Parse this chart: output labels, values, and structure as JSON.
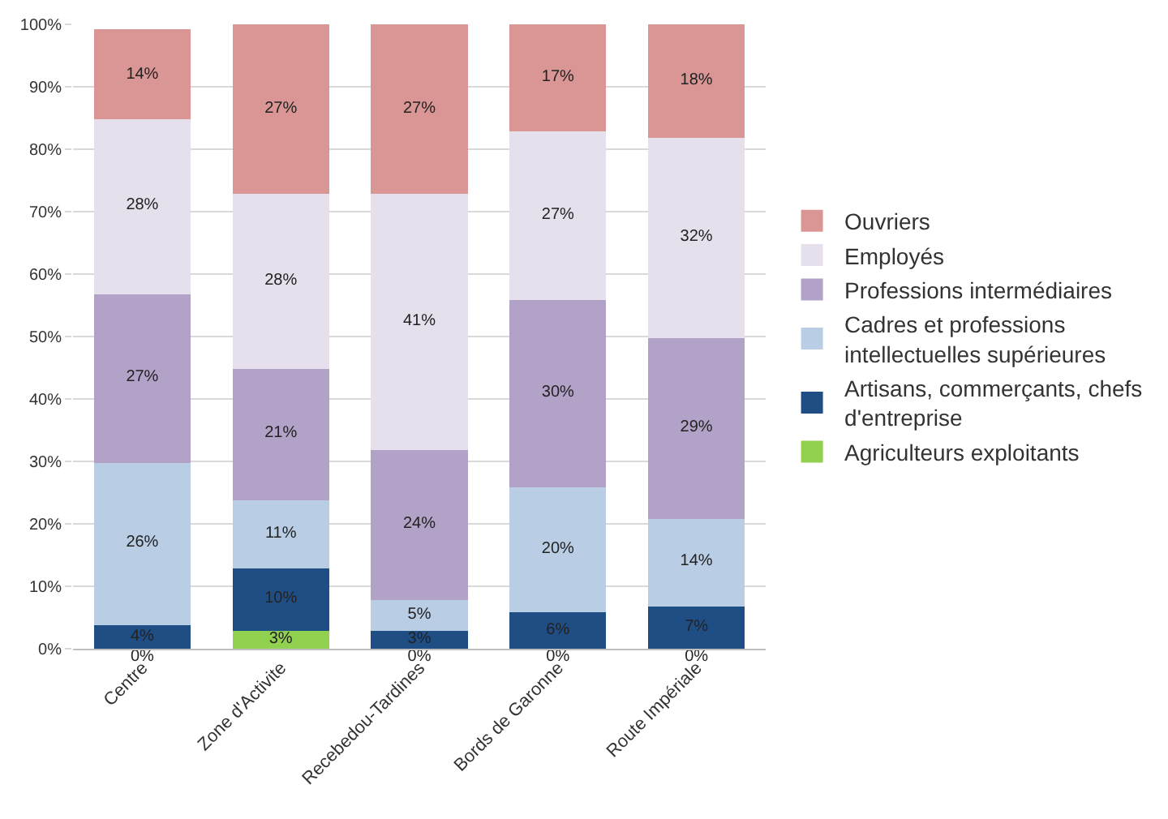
{
  "chart_data": {
    "type": "bar",
    "stacked": true,
    "categories": [
      "Centre",
      "Zone d'Activite",
      "Recebedou-Tardines",
      "Bords de Garonne",
      "Route Impériale"
    ],
    "series": [
      {
        "name": "Agriculteurs exploitants",
        "color": "#92d050",
        "values": [
          0,
          3,
          0,
          0,
          0
        ],
        "value_labels": [
          "0%",
          "3%",
          "0%",
          "0%",
          "0%"
        ]
      },
      {
        "name": "Artisans, commerçants, chefs d'entreprise",
        "color": "#1f4e85",
        "values": [
          4,
          10,
          3,
          6,
          7
        ],
        "value_labels": [
          "4%",
          "10%",
          "3%",
          "6%",
          "7%"
        ]
      },
      {
        "name": "Cadres et professions intellectuelles supérieures",
        "color": "#b9cde5",
        "values": [
          26,
          11,
          5,
          20,
          14
        ],
        "value_labels": [
          "26%",
          "11%",
          "5%",
          "20%",
          "14%"
        ]
      },
      {
        "name": "Professions intermédiaires",
        "color": "#b3a2c7",
        "values": [
          27,
          21,
          24,
          30,
          29
        ],
        "value_labels": [
          "27%",
          "21%",
          "24%",
          "30%",
          "29%"
        ]
      },
      {
        "name": "Employés",
        "color": "#e6e0ec",
        "values": [
          28,
          28,
          41,
          27,
          32
        ],
        "value_labels": [
          "28%",
          "28%",
          "41%",
          "27%",
          "32%"
        ]
      },
      {
        "name": "Ouvriers",
        "color": "#d99694",
        "values": [
          14,
          27,
          27,
          17,
          18
        ],
        "value_labels": [
          "14%",
          "27%",
          "27%",
          "17%",
          "18%"
        ]
      }
    ],
    "ylim": [
      0,
      100
    ],
    "yticks": [
      {
        "value": 0,
        "label": "0%"
      },
      {
        "value": 10,
        "label": "10%"
      },
      {
        "value": 20,
        "label": "20%"
      },
      {
        "value": 30,
        "label": "30%"
      },
      {
        "value": 40,
        "label": "40%"
      },
      {
        "value": 50,
        "label": "50%"
      },
      {
        "value": 60,
        "label": "60%"
      },
      {
        "value": 70,
        "label": "70%"
      },
      {
        "value": 80,
        "label": "80%"
      },
      {
        "value": 90,
        "label": "90%"
      },
      {
        "value": 100,
        "label": "100%"
      }
    ],
    "grid": "y",
    "legend": "right"
  }
}
